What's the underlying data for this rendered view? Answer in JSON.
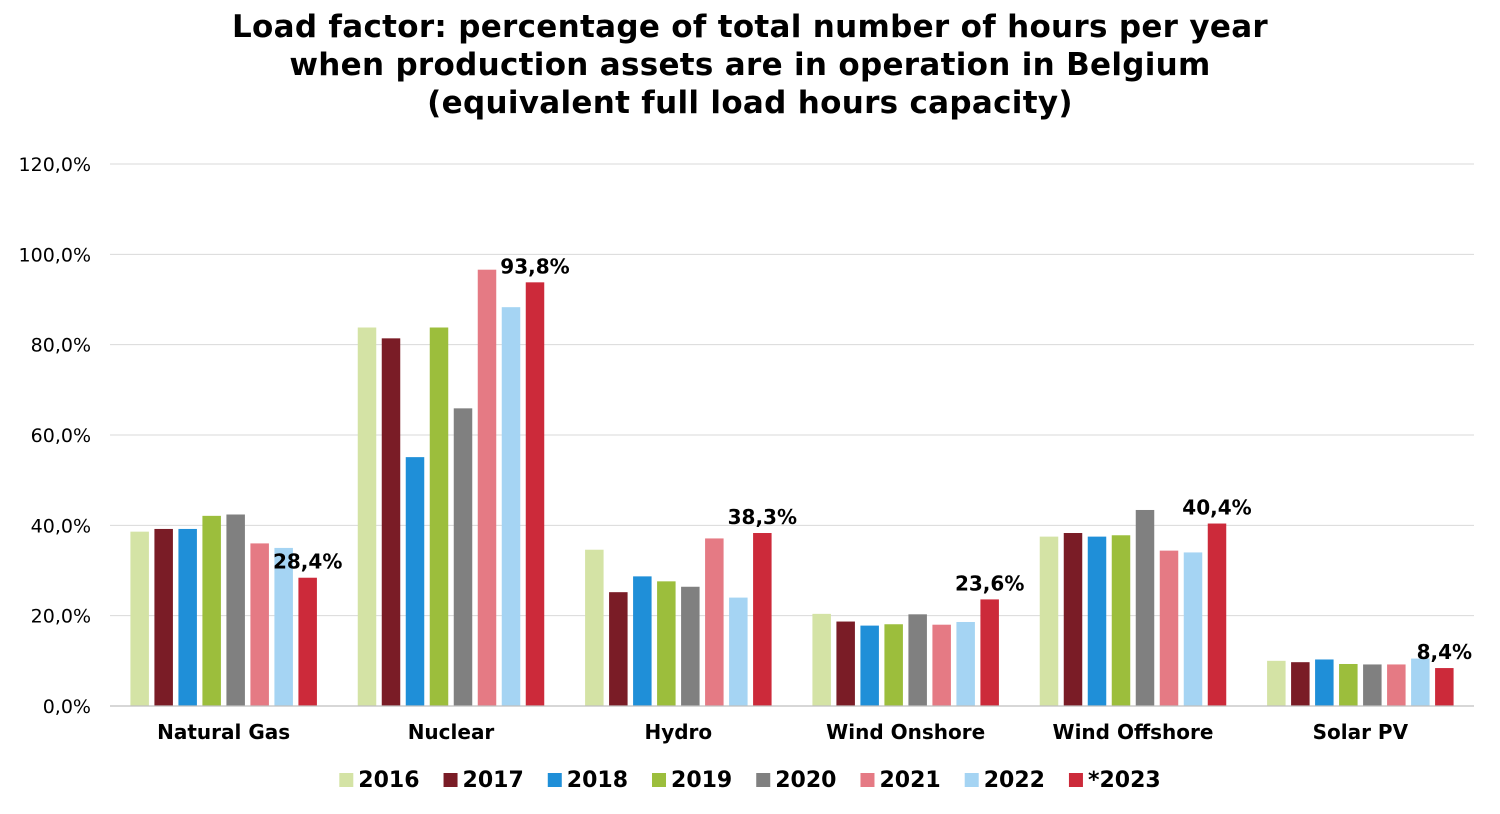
{
  "chart_data": {
    "type": "bar",
    "title_lines": [
      "Load factor: percentage of total number of hours per year",
      "when production assets are in operation in Belgium",
      "(equivalent full load hours capacity)"
    ],
    "categories": [
      "Natural Gas",
      "Nuclear",
      "Hydro",
      "Wind Onshore",
      "Wind Offshore",
      "Solar PV"
    ],
    "series": [
      {
        "name": "2016",
        "color": "#d4e3a5",
        "values": [
          38.6,
          83.8,
          34.6,
          20.4,
          37.5,
          10.0
        ]
      },
      {
        "name": "2017",
        "color": "#7a1c26",
        "values": [
          39.2,
          81.4,
          25.2,
          18.7,
          38.3,
          9.7
        ]
      },
      {
        "name": "2018",
        "color": "#1f8fd8",
        "values": [
          39.2,
          55.1,
          28.7,
          17.8,
          37.5,
          10.3
        ]
      },
      {
        "name": "2019",
        "color": "#9cbe3c",
        "values": [
          42.1,
          83.8,
          27.6,
          18.1,
          37.8,
          9.3
        ]
      },
      {
        "name": "2020",
        "color": "#808080",
        "values": [
          42.4,
          65.9,
          26.4,
          20.3,
          43.4,
          9.2
        ]
      },
      {
        "name": "2021",
        "color": "#e57a84",
        "values": [
          36.0,
          96.6,
          37.1,
          18.0,
          34.4,
          9.2
        ]
      },
      {
        "name": "2022",
        "color": "#a5d4f3",
        "values": [
          35.0,
          88.3,
          24.0,
          18.6,
          34.0,
          10.5
        ]
      },
      {
        "name": "*2023",
        "color": "#cc2a3a",
        "values": [
          28.4,
          93.8,
          38.3,
          23.6,
          40.4,
          8.4
        ]
      }
    ],
    "data_labels": [
      {
        "category": "Natural Gas",
        "series": "*2023",
        "text": "28,4%"
      },
      {
        "category": "Nuclear",
        "series": "*2023",
        "text": "93,8%"
      },
      {
        "category": "Hydro",
        "series": "*2023",
        "text": "38,3%"
      },
      {
        "category": "Wind Onshore",
        "series": "*2023",
        "text": "23,6%"
      },
      {
        "category": "Wind Offshore",
        "series": "*2023",
        "text": "40,4%"
      },
      {
        "category": "Solar PV",
        "series": "*2023",
        "text": "8,4%"
      }
    ],
    "yticks": [
      0,
      20,
      40,
      60,
      80,
      100,
      120
    ],
    "ytick_labels": [
      "0,0%",
      "20,0%",
      "40,0%",
      "60,0%",
      "80,0%",
      "100,0%",
      "120,0%"
    ],
    "ylim": [
      0,
      120
    ],
    "xlabel": "",
    "ylabel": "",
    "grid": true,
    "legend_position": "bottom"
  }
}
